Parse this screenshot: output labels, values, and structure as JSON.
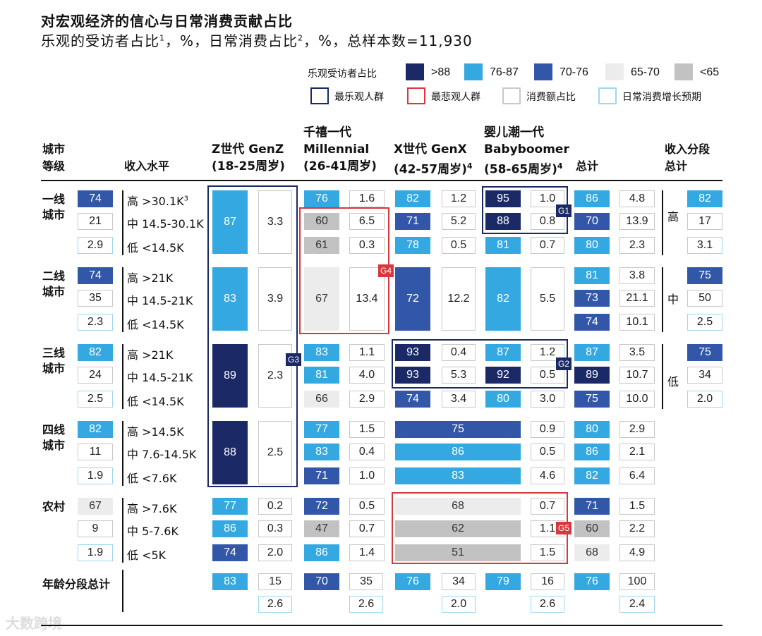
{
  "title": "对宏观经济的信心与日常消费贡献占比",
  "subtitle_parts": {
    "a": "乐观的受访者占比",
    "sup1": "1",
    "b": "，%，日常消费占比",
    "sup2": "2",
    "c": "，%，总样本数=11,930"
  },
  "legend": {
    "label": "乐观受访者占比",
    "bins": [
      {
        "label": ">88",
        "color": "#1b2a66"
      },
      {
        "label": "76-87",
        "color": "#34a8e0"
      },
      {
        "label": "70-76",
        "color": "#3357a8"
      },
      {
        "label": "65-70",
        "color": "#ececec"
      },
      {
        "label": "<65",
        "color": "#c2c2c2"
      }
    ],
    "boxes": [
      {
        "label": "最乐观人群",
        "color": "#1b2a66"
      },
      {
        "label": "最悲观人群",
        "color": "#d9363e"
      },
      {
        "label": "消费额占比",
        "color": "#c8c8c8"
      },
      {
        "label": "日常消费增长预期",
        "color": "#9fd6f0"
      }
    ]
  },
  "headers": {
    "city_tier": [
      "城市",
      "等级"
    ],
    "income": "收入水平",
    "genz": [
      "Z世代 GenZ",
      "(18-25周岁)"
    ],
    "millennial": [
      "千禧一代",
      "Millennial",
      "(26-41周岁)"
    ],
    "genx": [
      "X世代 GenX",
      "(42-57周岁)",
      "4"
    ],
    "boomer": [
      "婴儿潮一代",
      "Babyboomer",
      "(58-65周岁)",
      "4"
    ],
    "total": "总计",
    "income_total": [
      "收入分段",
      "总计"
    ]
  },
  "tiers": [
    {
      "name": [
        "一线",
        "城市"
      ]
    },
    {
      "name": [
        "二线",
        "城市"
      ]
    },
    {
      "name": [
        "三线",
        "城市"
      ]
    },
    {
      "name": [
        "四线",
        "城市"
      ]
    },
    {
      "name": [
        "农村"
      ]
    }
  ],
  "income_levels": [
    "高 >30.1K",
    "中 14.5-30.1K",
    "低 <14.5K",
    "高 >21K",
    "中 14.5-21K",
    "低 <14.5K",
    "高 >21K",
    "中 14.5-21K",
    "低 <14.5K",
    "高 >14.5K",
    "中 7.6-14.5K",
    "低 <7.6K",
    "高 >7.6K",
    "中 5-7.6K",
    "低 <5K"
  ],
  "income_sup_first": "3",
  "age_total_label": "年龄分段总计",
  "income_group_labels": [
    "高",
    "中",
    "低"
  ],
  "group_badges": [
    "G1",
    "G2",
    "G3",
    "G4",
    "G5"
  ],
  "watermark": "大数跨境",
  "chart_data": {
    "type": "table",
    "title": "对宏观经济的信心与日常消费贡献占比",
    "tier_summary": [
      {
        "tier": "一线城市",
        "optimism": 74,
        "share": 21,
        "growth": 2.9
      },
      {
        "tier": "二线城市",
        "optimism": 74,
        "share": 35,
        "growth": 2.3
      },
      {
        "tier": "三线城市",
        "optimism": 82,
        "share": 24,
        "growth": 2.5
      },
      {
        "tier": "四线城市",
        "optimism": 82,
        "share": 11,
        "growth": 1.9
      },
      {
        "tier": "农村",
        "optimism": 67,
        "share": 9,
        "growth": 1.9
      }
    ],
    "genz": [
      {
        "rows": "一线城市",
        "optimism": 87,
        "share": 3.3
      },
      {
        "rows": "二线城市",
        "optimism": 83,
        "share": 3.9
      },
      {
        "rows": "三线城市",
        "optimism": 89,
        "share": 2.3
      },
      {
        "rows": "四线城市",
        "optimism": 88,
        "share": 2.5
      },
      {
        "rows": "农村-高",
        "optimism": 77,
        "share": 0.2
      },
      {
        "rows": "农村-中",
        "optimism": 86,
        "share": 0.3
      },
      {
        "rows": "农村-低",
        "optimism": 74,
        "share": 2.0
      }
    ],
    "millennial": [
      {
        "rows": "一线城市-高",
        "optimism": 76,
        "share": 1.6
      },
      {
        "rows": "一线城市-中",
        "optimism": 60,
        "share": 6.5
      },
      {
        "rows": "一线城市-低",
        "optimism": 61,
        "share": 0.3
      },
      {
        "rows": "二线城市",
        "optimism": 67,
        "share": 13.4
      },
      {
        "rows": "三线城市-高",
        "optimism": 83,
        "share": 1.1
      },
      {
        "rows": "三线城市-中",
        "optimism": 81,
        "share": 4.0
      },
      {
        "rows": "三线城市-低",
        "optimism": 66,
        "share": 2.9
      },
      {
        "rows": "四线城市-高",
        "optimism": 77,
        "share": 1.5
      },
      {
        "rows": "四线城市-中",
        "optimism": 83,
        "share": 0.4
      },
      {
        "rows": "四线城市-低",
        "optimism": 71,
        "share": 1.0
      },
      {
        "rows": "农村-高",
        "optimism": 72,
        "share": 0.5
      },
      {
        "rows": "农村-中",
        "optimism": 47,
        "share": 0.7
      },
      {
        "rows": "农村-低",
        "optimism": 86,
        "share": 1.4
      }
    ],
    "genx": [
      {
        "rows": "一线城市-高",
        "optimism": 82,
        "share": 1.2
      },
      {
        "rows": "一线城市-中",
        "optimism": 71,
        "share": 5.2
      },
      {
        "rows": "一线城市-低",
        "optimism": 78,
        "share": 0.5
      },
      {
        "rows": "二线城市",
        "optimism": 72,
        "share": 12.2
      },
      {
        "rows": "三线城市-高",
        "optimism": 93,
        "share": 0.4
      },
      {
        "rows": "三线城市-中",
        "optimism": 93,
        "share": 5.3
      },
      {
        "rows": "三线城市-低",
        "optimism": 74,
        "share": 3.4
      }
    ],
    "boomer": [
      {
        "rows": "一线城市-高",
        "optimism": 95,
        "share": 1.0
      },
      {
        "rows": "一线城市-中",
        "optimism": 88,
        "share": 0.8
      },
      {
        "rows": "一线城市-低",
        "optimism": 81,
        "share": 0.7
      },
      {
        "rows": "二线城市",
        "optimism": 82,
        "share": 5.5
      },
      {
        "rows": "三线城市-高",
        "optimism": 87,
        "share": 1.2
      },
      {
        "rows": "三线城市-中",
        "optimism": 92,
        "share": 0.5
      },
      {
        "rows": "三线城市-低",
        "optimism": 80,
        "share": 3.0
      }
    ],
    "genx_boomer_merged": [
      {
        "rows": "四线城市-高",
        "optimism": 75,
        "boomer_share": 0.9
      },
      {
        "rows": "四线城市-中",
        "optimism": 86,
        "boomer_share": 0.5
      },
      {
        "rows": "四线城市-低",
        "optimism": 83,
        "boomer_share": 4.6
      },
      {
        "rows": "农村-高",
        "optimism": 68,
        "boomer_share": 0.7
      },
      {
        "rows": "农村-中",
        "optimism": 62,
        "boomer_share": 1.1
      },
      {
        "rows": "农村-低",
        "optimism": 51,
        "boomer_share": 1.5
      }
    ],
    "row_totals": [
      {
        "optimism": 86,
        "share": 4.8
      },
      {
        "optimism": 70,
        "share": 13.9
      },
      {
        "optimism": 80,
        "share": 2.3
      },
      {
        "optimism": 81,
        "share": 3.8
      },
      {
        "optimism": 73,
        "share": 21.1
      },
      {
        "optimism": 74,
        "share": 10.1
      },
      {
        "optimism": 87,
        "share": 3.5
      },
      {
        "optimism": 89,
        "share": 10.7
      },
      {
        "optimism": 75,
        "share": 10.0
      },
      {
        "optimism": 80,
        "share": 2.9
      },
      {
        "optimism": 86,
        "share": 2.1
      },
      {
        "optimism": 82,
        "share": 6.4
      },
      {
        "optimism": 71,
        "share": 1.5
      },
      {
        "optimism": 60,
        "share": 2.2
      },
      {
        "optimism": 68,
        "share": 4.9
      }
    ],
    "income_totals": [
      {
        "level": "高",
        "optimism": 82,
        "share": 17,
        "growth": 3.1
      },
      {
        "level": "中",
        "optimism": 75,
        "share": 50,
        "growth": 2.5
      },
      {
        "level": "低",
        "optimism": 75,
        "share": 34,
        "growth": 2.0
      }
    ],
    "age_totals": [
      {
        "generation": "GenZ",
        "optimism": 83,
        "share": 15,
        "growth": 2.6
      },
      {
        "generation": "Millennial",
        "optimism": 70,
        "share": 35,
        "growth": 2.6
      },
      {
        "generation": "GenX",
        "optimism": 76,
        "share": 34,
        "growth": 2.0
      },
      {
        "generation": "Babyboomer",
        "optimism": 79,
        "share": 16,
        "growth": 2.6
      }
    ],
    "grand_total": {
      "optimism": 76,
      "share": 100,
      "growth": 2.4
    }
  }
}
